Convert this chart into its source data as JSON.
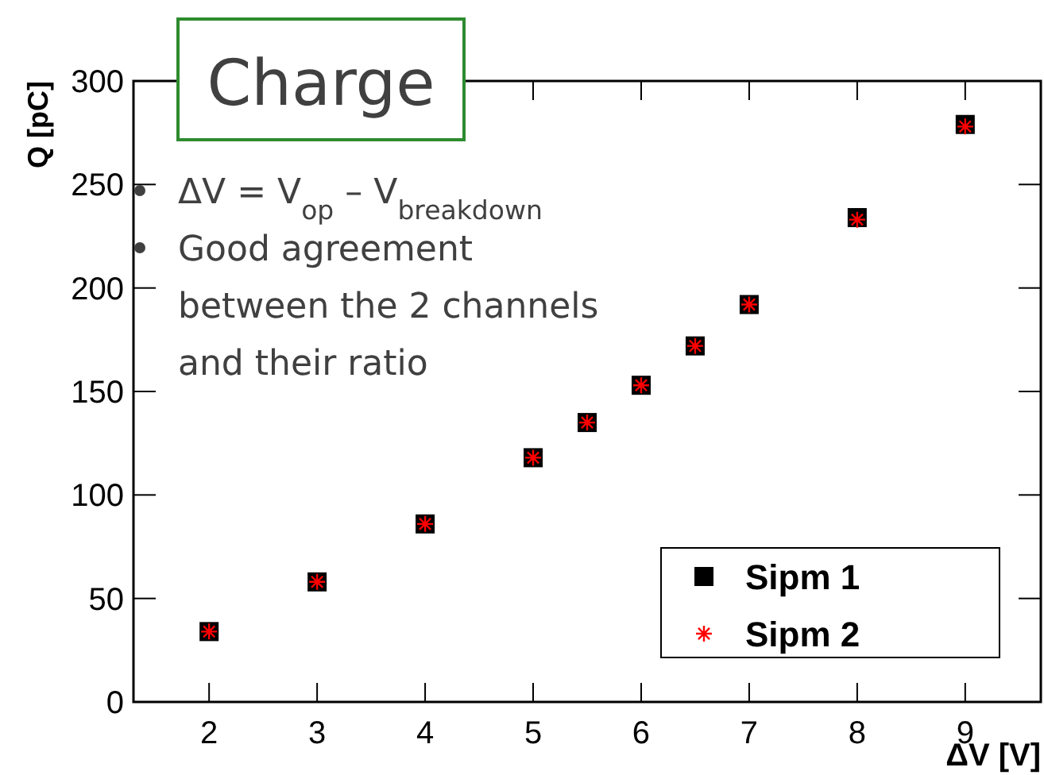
{
  "chart_data": {
    "type": "scatter",
    "title": "Charge",
    "xlabel": "ΔV [V]",
    "ylabel": "Q [pC]",
    "annotations": [
      "ΔV =  V$_{op}$ – V$_{breakdown}$",
      "Good agreement\nbetween  the 2 channels\nand their ratio"
    ],
    "x": [
      2,
      3,
      4,
      5,
      5.5,
      6,
      6.5,
      7,
      8,
      9
    ],
    "series": [
      {
        "name": "Sipm 1",
        "color": "#000000",
        "marker": "square",
        "values": [
          34,
          58,
          86,
          118,
          135,
          153,
          172,
          192,
          234,
          279
        ]
      },
      {
        "name": "Sipm 2",
        "color": "#ff0000",
        "marker": "cross",
        "values": [
          34,
          58,
          86,
          118,
          135,
          153,
          172,
          192,
          233,
          278
        ]
      }
    ],
    "xlim": [
      1.3,
      9.7
    ],
    "xticks": [
      2,
      3,
      4,
      5,
      6,
      7,
      8,
      9
    ],
    "ylim": [
      0,
      300
    ],
    "yticks": [
      0,
      50,
      100,
      150,
      200,
      250,
      300
    ],
    "grid": false,
    "legend": "bottom right"
  }
}
